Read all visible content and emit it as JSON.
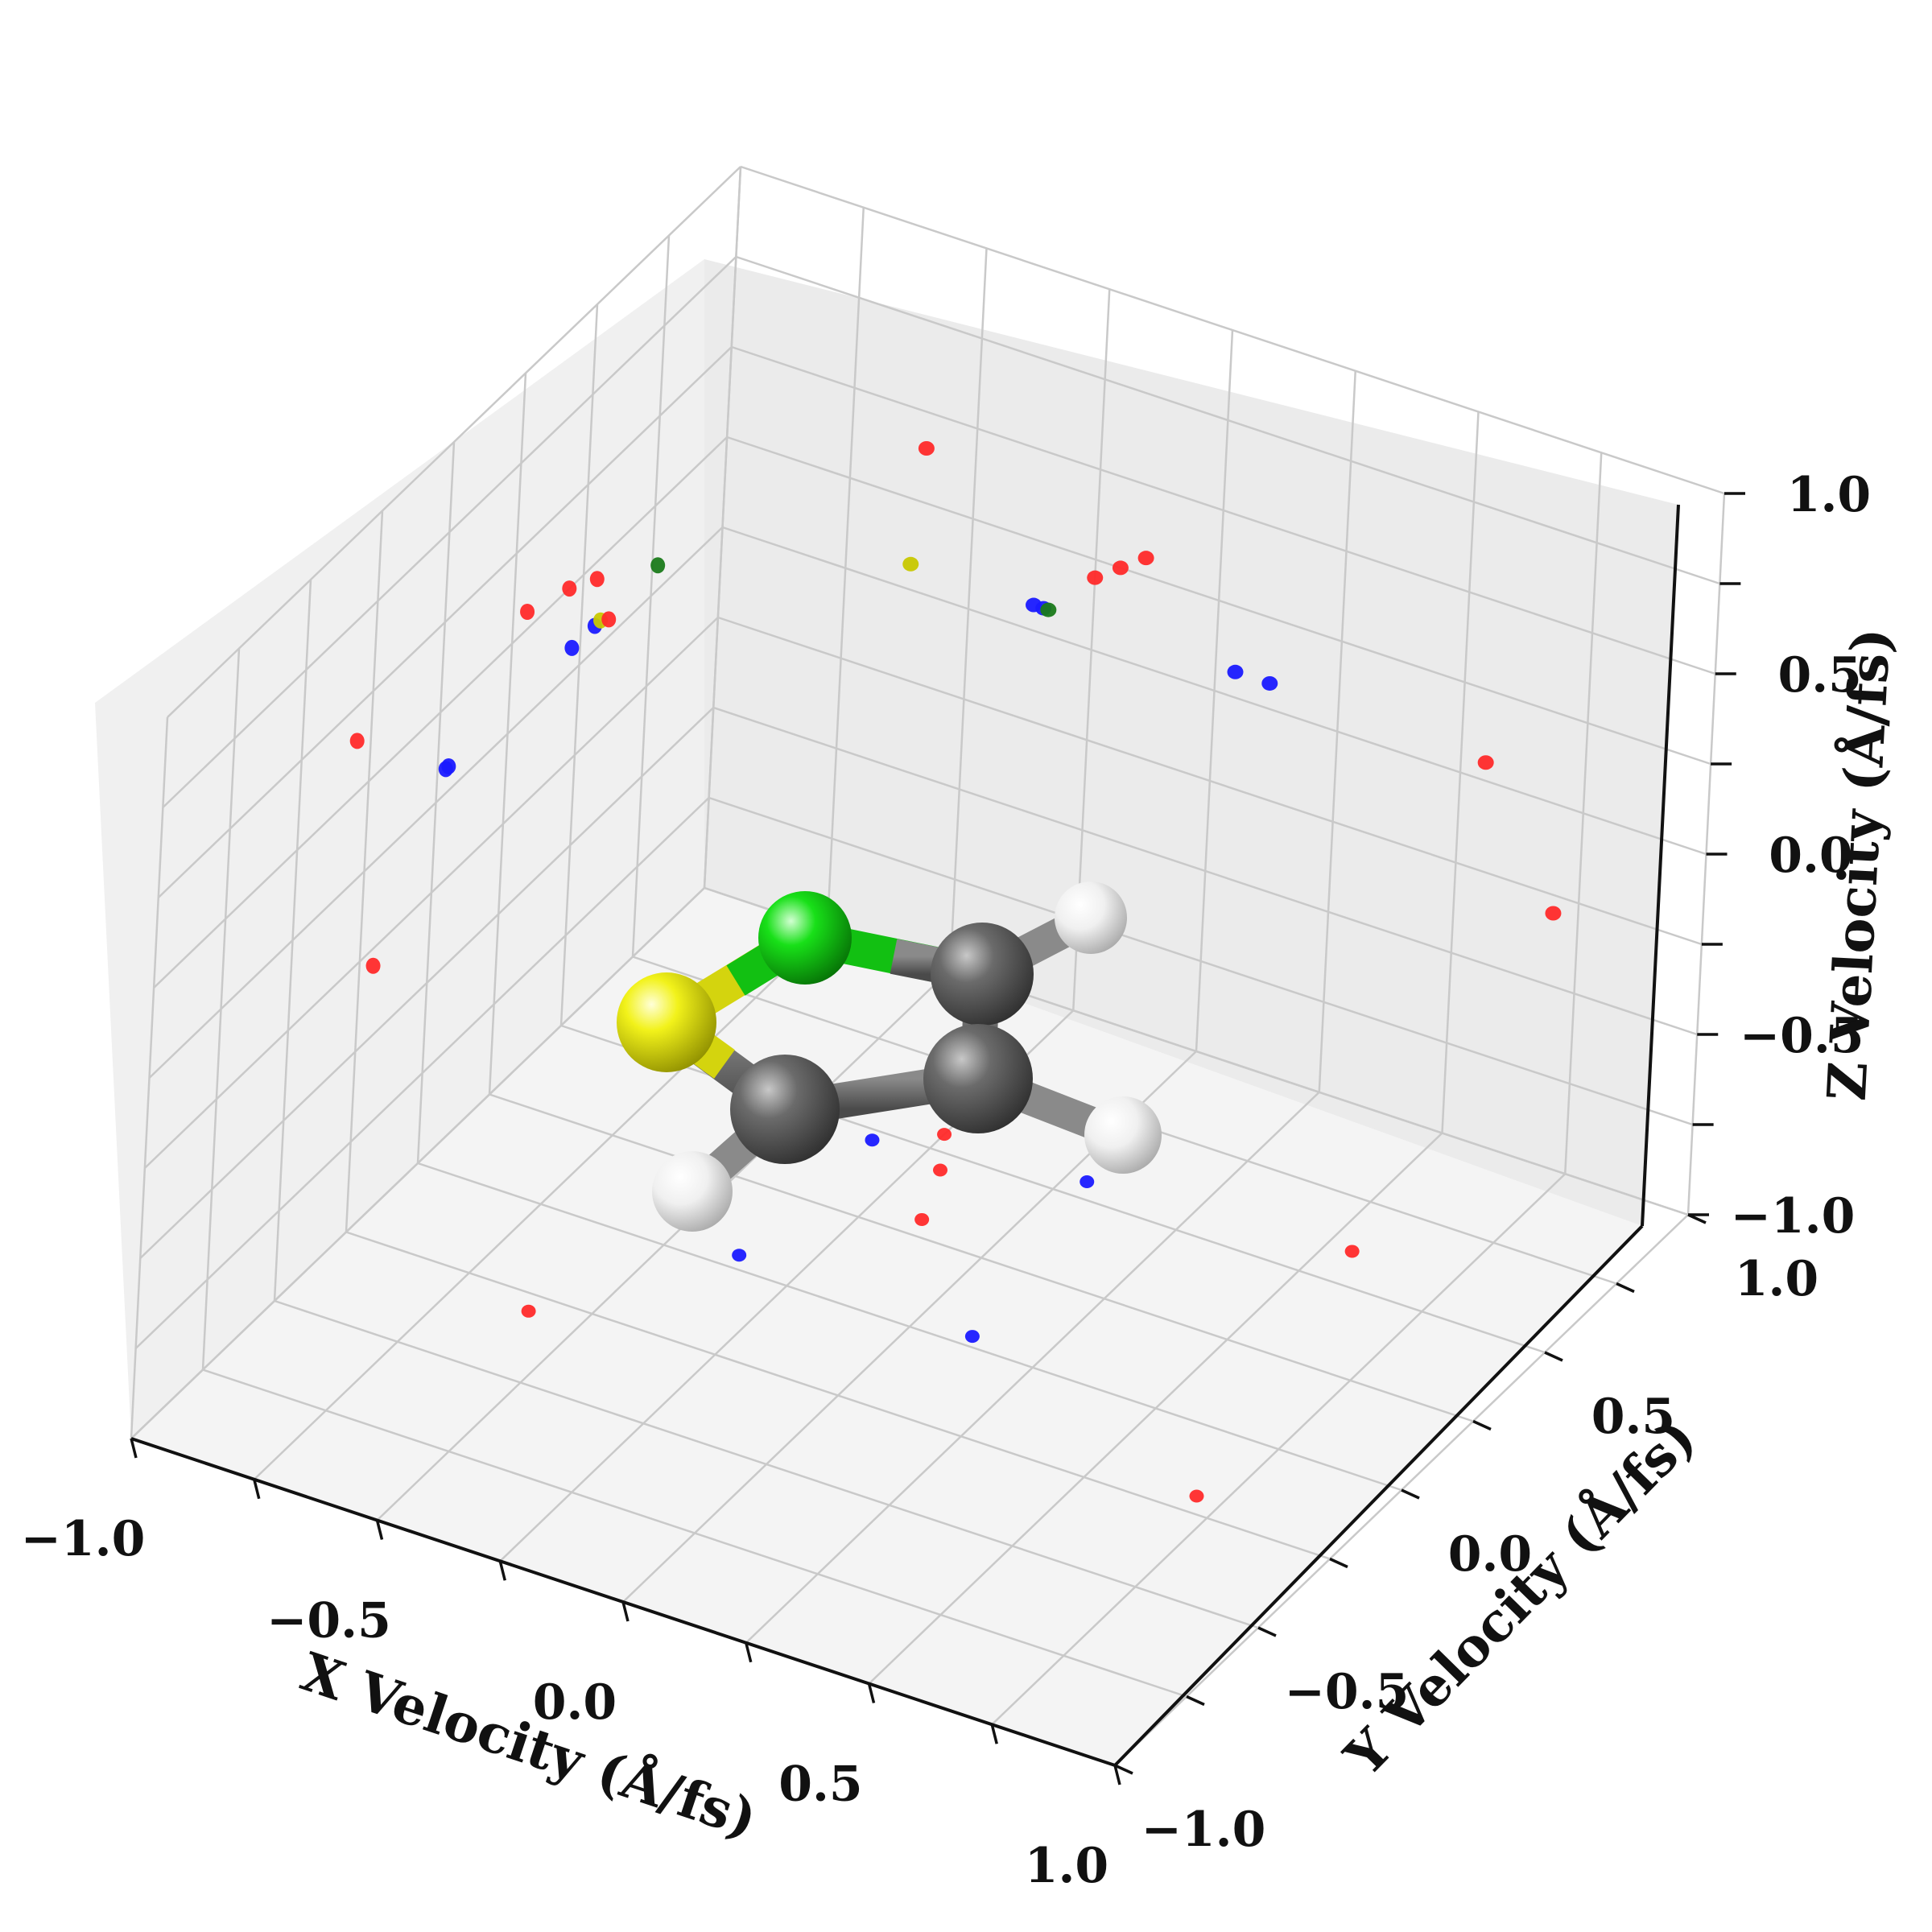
{
  "chart_data": {
    "type": "scatter",
    "projection": "3d",
    "title": "",
    "xlabel": "X Velocity (Å/fs)",
    "ylabel": "Y Velocity (Å/fs)",
    "zlabel": "Z Velocity (Å/fs)",
    "xlim": [
      -1.0,
      1.0
    ],
    "ylim": [
      -1.0,
      1.0
    ],
    "zlim": [
      -1.0,
      1.0
    ],
    "grid": true,
    "xticks": [
      {
        "value": -1.0,
        "label": "−1.0"
      },
      {
        "value": -0.5,
        "label": "−0.5"
      },
      {
        "value": 0.0,
        "label": "0.0"
      },
      {
        "value": 0.5,
        "label": "0.5"
      },
      {
        "value": 1.0,
        "label": "1.0"
      }
    ],
    "yticks": [
      {
        "value": -1.0,
        "label": "−1.0"
      },
      {
        "value": -0.5,
        "label": "−0.5"
      },
      {
        "value": 0.0,
        "label": "0.0"
      },
      {
        "value": 0.5,
        "label": "0.5"
      },
      {
        "value": 1.0,
        "label": "1.0"
      }
    ],
    "zticks": [
      {
        "value": -1.0,
        "label": "−1.0"
      },
      {
        "value": -0.5,
        "label": "−0.5"
      },
      {
        "value": 0.0,
        "label": "0.0"
      },
      {
        "value": 0.5,
        "label": "0.5"
      },
      {
        "value": 1.0,
        "label": "1.0"
      }
    ],
    "series": [
      {
        "color": "#1a1aff",
        "points": [
          {
            "x": -0.35,
            "y": 0.47,
            "z": 0.07
          },
          {
            "x": 0.04,
            "y": 0.55,
            "z": 0.07
          },
          {
            "x": -0.37,
            "y": 0.04,
            "z": 0.07
          },
          {
            "x": 0.11,
            "y": 0.03,
            "z": 0.07
          }
        ]
      },
      {
        "color": "#1a7a1a",
        "points": [
          {
            "x": -0.34,
            "y": 0.77,
            "z": 0.07
          }
        ]
      },
      {
        "color": "#c8c800",
        "points": [
          {
            "x": -0.62,
            "y": 0.57,
            "z": 0.07
          }
        ]
      },
      {
        "color": "#ff2a2a",
        "points": [
          {
            "x": -0.2,
            "y": 0.45,
            "z": 0.25
          },
          {
            "x": -0.15,
            "y": 0.3,
            "z": 0.3
          },
          {
            "x": -0.25,
            "y": 0.55,
            "z": 0.2
          },
          {
            "x": 0.55,
            "y": 0.6,
            "z": 0.05
          },
          {
            "x": -0.6,
            "y": -0.3,
            "z": 0.4
          },
          {
            "x": 0.7,
            "y": -0.2,
            "z": -0.3
          }
        ]
      }
    ]
  },
  "molecule": {
    "atom_colors": {
      "S": "#f2f21a",
      "N": "#18e018",
      "C": "#6b6b6b",
      "H": "#f2f2f2"
    }
  }
}
